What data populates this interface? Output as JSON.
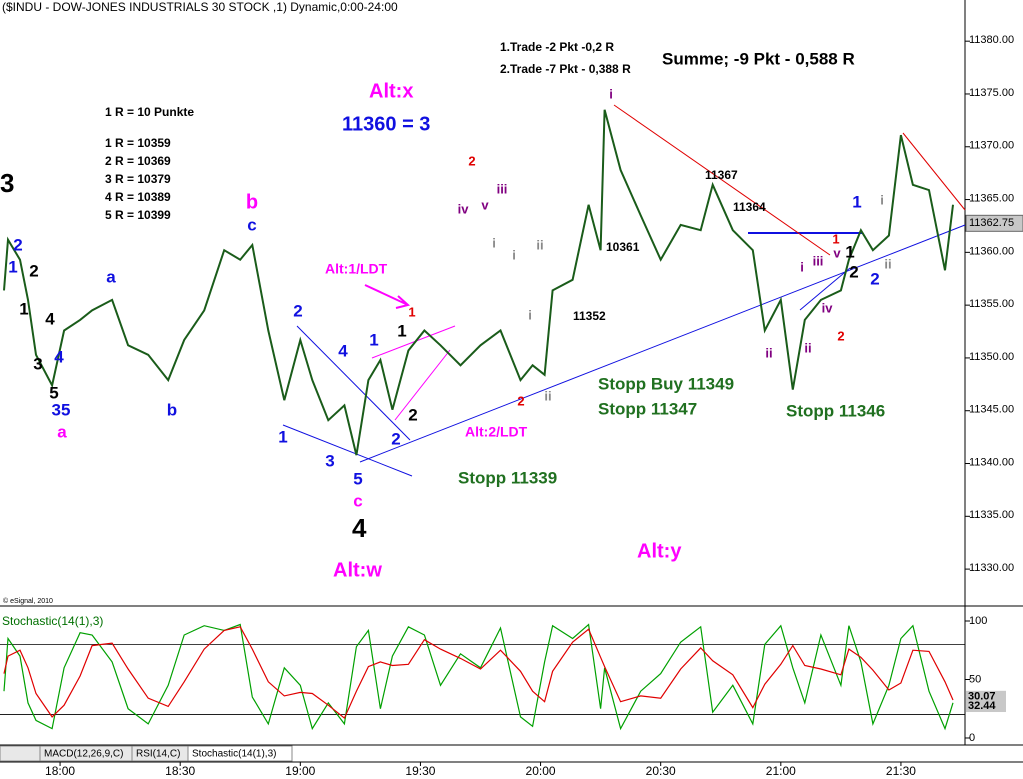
{
  "chart_data": [
    {
      "type": "line",
      "title": "($INDU - DOW-JONES INDUSTRIALS 30 STOCK ,1) Dynamic,0:00-24:00",
      "color": "#1a5c1a",
      "x": [
        "17:46",
        "17:47",
        "17:50",
        "17:52",
        "17:54",
        "17:58",
        "18:01",
        "18:05",
        "18:08",
        "18:13",
        "18:17",
        "18:22",
        "18:27",
        "18:31",
        "18:36",
        "18:41",
        "18:45",
        "18:48",
        "18:52",
        "18:56",
        "19:00",
        "19:03",
        "19:07",
        "19:11",
        "19:14",
        "19:17",
        "19:20",
        "19:23",
        "19:27",
        "19:31",
        "19:35",
        "19:40",
        "19:45",
        "19:50",
        "19:55",
        "19:58",
        "20:01",
        "20:03",
        "20:08",
        "20:12",
        "20:15",
        "20:16",
        "20:20",
        "20:25",
        "20:30",
        "20:35",
        "20:40",
        "20:43",
        "20:48",
        "20:53",
        "20:56",
        "21:00",
        "21:03",
        "21:06",
        "21:10",
        "21:15",
        "21:17",
        "21:20",
        "21:23",
        "21:27",
        "21:30",
        "21:33",
        "21:37",
        "21:41",
        "21:43"
      ],
      "values": [
        11356.4,
        11361.2,
        11359.3,
        11355.5,
        11350.3,
        11347.4,
        11352.6,
        11353.6,
        11354.5,
        11355.5,
        11351.2,
        11350.3,
        11347.9,
        11351.7,
        11354.5,
        11360.2,
        11359.3,
        11360.7,
        11352.6,
        11346.0,
        11351.7,
        11347.9,
        11344.1,
        11345.5,
        11340.8,
        11347.9,
        11349.8,
        11345.1,
        11350.7,
        11352.6,
        11351.2,
        11349.3,
        11351.2,
        11352.6,
        11347.9,
        11349.3,
        11348.4,
        11356.4,
        11357.4,
        11364.5,
        11360.2,
        11373.5,
        11367.8,
        11363.5,
        11359.3,
        11362.6,
        11362.1,
        11366.4,
        11362.1,
        11360.2,
        11352.6,
        11355.5,
        11347.0,
        11353.6,
        11355.5,
        11356.4,
        11359.3,
        11362.1,
        11360.2,
        11361.6,
        11371.1,
        11366.4,
        11365.9,
        11358.3,
        11364.5
      ],
      "xlim": [
        "17:45",
        "21:46"
      ],
      "xticks": [
        "18:00",
        "18:30",
        "19:00",
        "19:30",
        "20:00",
        "20:30",
        "21:00",
        "21:30"
      ],
      "ylim": [
        11326.6,
        11383.9
      ],
      "yticks": [
        {
          "value": 11330,
          "label": "11330.00"
        },
        {
          "value": 11335,
          "label": "11335.00"
        },
        {
          "value": 11340,
          "label": "11340.00"
        },
        {
          "value": 11345,
          "label": "11345.00"
        },
        {
          "value": 11350,
          "label": "11350.00"
        },
        {
          "value": 11355,
          "label": "11355.00"
        },
        {
          "value": 11360,
          "label": "11360.00"
        },
        {
          "value": 11365,
          "label": "11365.00"
        },
        {
          "value": 11370,
          "label": "11370.00"
        },
        {
          "value": 11375,
          "label": "11375.00"
        },
        {
          "value": 11380,
          "label": "11380.00"
        }
      ],
      "last_price": 11362.75,
      "annotations": [
        "1.Trade -2 Pkt -0,2 R",
        "2.Trade -7 Pkt - 0,388 R",
        "Summe; -9 Pkt - 0,588 R",
        "Alt:x",
        "11360 = 3",
        "1 R = 10 Punkte",
        "1 R = 10359",
        "2 R = 10369",
        "3 R = 10379",
        "4 R = 10389",
        "5 R = 10399",
        "3",
        "4",
        "Alt:1/LDT",
        "Alt:2/LDT",
        "Stopp Buy 11349",
        "Stopp 11347",
        "Stopp 11346",
        "Stopp 11339",
        "Alt:y",
        "Alt:w",
        "11367",
        "11364",
        "10361",
        "11352"
      ],
      "wave_labels": [
        "2",
        "1",
        "2",
        "1",
        "4",
        "3",
        "4",
        "5",
        "35",
        "a",
        "a",
        "b",
        "b",
        "c",
        "2",
        "4",
        "1",
        "3",
        "5",
        "c",
        "1",
        "1",
        "2",
        "2",
        "1",
        "2",
        "ii",
        "i",
        "2",
        "iv",
        "v",
        "iii",
        "i",
        "i",
        "ii",
        "i",
        "1",
        "i",
        "1",
        "1",
        "v",
        "iii",
        "i",
        "2",
        "ii",
        "2",
        "iv",
        "2",
        "ii",
        "ii"
      ]
    },
    {
      "type": "line",
      "title": "Stochastic(14(1),3)",
      "x": [
        "17:46",
        "17:47",
        "17:50",
        "17:52",
        "17:54",
        "17:58",
        "18:01",
        "18:05",
        "18:08",
        "18:13",
        "18:17",
        "18:22",
        "18:27",
        "18:31",
        "18:36",
        "18:41",
        "18:45",
        "18:48",
        "18:52",
        "18:56",
        "19:00",
        "19:03",
        "19:07",
        "19:11",
        "19:14",
        "19:17",
        "19:20",
        "19:23",
        "19:27",
        "19:31",
        "19:35",
        "19:40",
        "19:45",
        "19:50",
        "19:55",
        "19:58",
        "20:01",
        "20:03",
        "20:08",
        "20:12",
        "20:15",
        "20:16",
        "20:20",
        "20:25",
        "20:30",
        "20:35",
        "20:40",
        "20:43",
        "20:48",
        "20:53",
        "20:56",
        "21:00",
        "21:03",
        "21:06",
        "21:10",
        "21:15",
        "21:17",
        "21:20",
        "21:23",
        "21:27",
        "21:30",
        "21:33",
        "21:37",
        "21:41",
        "21:43"
      ],
      "series": [
        {
          "color": "#00a000",
          "values": [
            40,
            85,
            70,
            30,
            15,
            8,
            60,
            90,
            88,
            65,
            25,
            12,
            45,
            88,
            96,
            92,
            97,
            35,
            12,
            60,
            45,
            8,
            30,
            12,
            78,
            92,
            25,
            70,
            95,
            88,
            45,
            72,
            60,
            94,
            18,
            10,
            65,
            96,
            85,
            97,
            25,
            60,
            8,
            40,
            55,
            82,
            95,
            22,
            45,
            12,
            80,
            96,
            60,
            30,
            88,
            45,
            96,
            65,
            12,
            45,
            85,
            96,
            40,
            8,
            30.07
          ]
        },
        {
          "color": "#e00000",
          "values": [
            55,
            70,
            75,
            60,
            38,
            18,
            28,
            53,
            79,
            81,
            59,
            34,
            27,
            48,
            76,
            92,
            95,
            76,
            48,
            36,
            39,
            38,
            28,
            17,
            40,
            61,
            65,
            62,
            63,
            84,
            76,
            68,
            59,
            75,
            57,
            40,
            31,
            57,
            82,
            93,
            69,
            61,
            31,
            36,
            34,
            59,
            77,
            66,
            54,
            26,
            46,
            63,
            79,
            62,
            59,
            54,
            76,
            69,
            58,
            41,
            47,
            75,
            74,
            48,
            32.44
          ]
        }
      ],
      "ylim": [
        -6,
        109.4
      ],
      "yticks": [
        0,
        50,
        100
      ],
      "levels": [
        20,
        80
      ]
    }
  ],
  "ui": {
    "copyright": "© eSignal, 2010",
    "tabs": [
      "MACD(12,26,9,C)",
      "RSI(14,C)",
      "Stochastic(14(1),3)"
    ]
  }
}
